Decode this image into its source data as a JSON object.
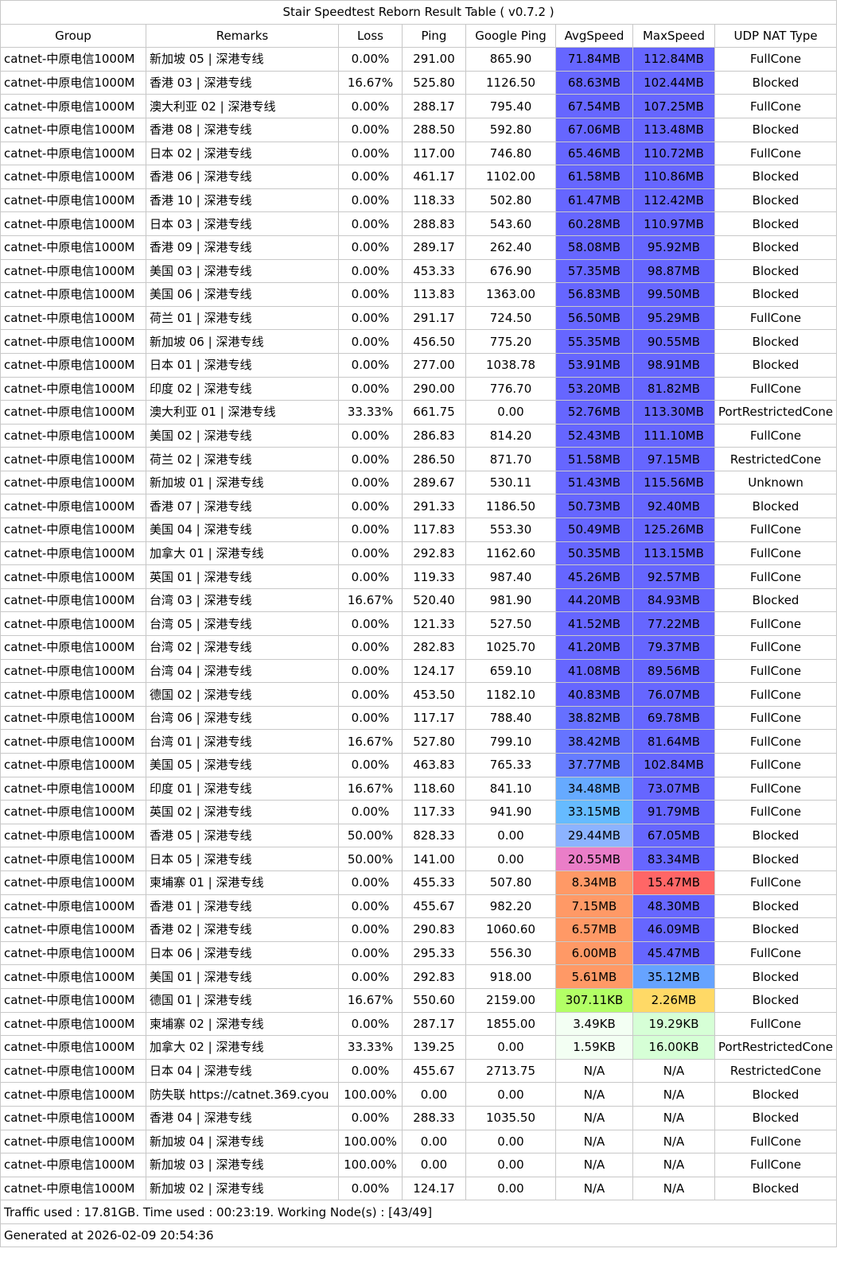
{
  "title": "Stair Speedtest Reborn Result Table ( v0.7.2 )",
  "columns": [
    "Group",
    "Remarks",
    "Loss",
    "Ping",
    "Google Ping",
    "AvgSpeed",
    "MaxSpeed",
    "UDP NAT Type"
  ],
  "colors": {
    "speed_top": "#6666ff",
    "speed_blue2": "#6b74ff",
    "speed_blue3": "#6a86ff",
    "speed_lightblue": "#66b2ff",
    "speed_cyan": "#66c2ff",
    "speed_paleblue": "#8db3ff",
    "speed_pink": "#e97ac6",
    "speed_orange": "#ff9966",
    "speed_red": "#ff6666",
    "speed_lime": "#b3ff66",
    "speed_yellow": "#ffd966",
    "speed_mint": "#f3fff3",
    "speed_palegreen": "#d9ffd9",
    "speed_midblue": "#66a3ff",
    "border": "#c8c8c8"
  },
  "rows": [
    {
      "group": "catnet-中原电信1000M",
      "remarks": "新加坡 05 | 深港专线",
      "loss": "0.00%",
      "ping": "291.00",
      "google_ping": "865.90",
      "avg": "71.84MB",
      "avg_color": "#6666ff",
      "max": "112.84MB",
      "max_color": "#6666ff",
      "nat": "FullCone"
    },
    {
      "group": "catnet-中原电信1000M",
      "remarks": "香港 03 | 深港专线",
      "loss": "16.67%",
      "ping": "525.80",
      "google_ping": "1126.50",
      "avg": "68.63MB",
      "avg_color": "#6666ff",
      "max": "102.44MB",
      "max_color": "#6666ff",
      "nat": "Blocked"
    },
    {
      "group": "catnet-中原电信1000M",
      "remarks": "澳大利亚 02 | 深港专线",
      "loss": "0.00%",
      "ping": "288.17",
      "google_ping": "795.40",
      "avg": "67.54MB",
      "avg_color": "#6666ff",
      "max": "107.25MB",
      "max_color": "#6666ff",
      "nat": "FullCone"
    },
    {
      "group": "catnet-中原电信1000M",
      "remarks": "香港 08 | 深港专线",
      "loss": "0.00%",
      "ping": "288.50",
      "google_ping": "592.80",
      "avg": "67.06MB",
      "avg_color": "#6666ff",
      "max": "113.48MB",
      "max_color": "#6666ff",
      "nat": "Blocked"
    },
    {
      "group": "catnet-中原电信1000M",
      "remarks": "日本 02 | 深港专线",
      "loss": "0.00%",
      "ping": "117.00",
      "google_ping": "746.80",
      "avg": "65.46MB",
      "avg_color": "#6666ff",
      "max": "110.72MB",
      "max_color": "#6666ff",
      "nat": "FullCone"
    },
    {
      "group": "catnet-中原电信1000M",
      "remarks": "香港 06 | 深港专线",
      "loss": "0.00%",
      "ping": "461.17",
      "google_ping": "1102.00",
      "avg": "61.58MB",
      "avg_color": "#6666ff",
      "max": "110.86MB",
      "max_color": "#6666ff",
      "nat": "Blocked"
    },
    {
      "group": "catnet-中原电信1000M",
      "remarks": "香港 10 | 深港专线",
      "loss": "0.00%",
      "ping": "118.33",
      "google_ping": "502.80",
      "avg": "61.47MB",
      "avg_color": "#6666ff",
      "max": "112.42MB",
      "max_color": "#6666ff",
      "nat": "Blocked"
    },
    {
      "group": "catnet-中原电信1000M",
      "remarks": "日本 03 | 深港专线",
      "loss": "0.00%",
      "ping": "288.83",
      "google_ping": "543.60",
      "avg": "60.28MB",
      "avg_color": "#6666ff",
      "max": "110.97MB",
      "max_color": "#6666ff",
      "nat": "Blocked"
    },
    {
      "group": "catnet-中原电信1000M",
      "remarks": "香港 09 | 深港专线",
      "loss": "0.00%",
      "ping": "289.17",
      "google_ping": "262.40",
      "avg": "58.08MB",
      "avg_color": "#6666ff",
      "max": "95.92MB",
      "max_color": "#6666ff",
      "nat": "Blocked"
    },
    {
      "group": "catnet-中原电信1000M",
      "remarks": "美国 03 | 深港专线",
      "loss": "0.00%",
      "ping": "453.33",
      "google_ping": "676.90",
      "avg": "57.35MB",
      "avg_color": "#6666ff",
      "max": "98.87MB",
      "max_color": "#6666ff",
      "nat": "Blocked"
    },
    {
      "group": "catnet-中原电信1000M",
      "remarks": "美国 06 | 深港专线",
      "loss": "0.00%",
      "ping": "113.83",
      "google_ping": "1363.00",
      "avg": "56.83MB",
      "avg_color": "#6666ff",
      "max": "99.50MB",
      "max_color": "#6666ff",
      "nat": "Blocked"
    },
    {
      "group": "catnet-中原电信1000M",
      "remarks": "荷兰 01 | 深港专线",
      "loss": "0.00%",
      "ping": "291.17",
      "google_ping": "724.50",
      "avg": "56.50MB",
      "avg_color": "#6666ff",
      "max": "95.29MB",
      "max_color": "#6666ff",
      "nat": "FullCone"
    },
    {
      "group": "catnet-中原电信1000M",
      "remarks": "新加坡 06 | 深港专线",
      "loss": "0.00%",
      "ping": "456.50",
      "google_ping": "775.20",
      "avg": "55.35MB",
      "avg_color": "#6666ff",
      "max": "90.55MB",
      "max_color": "#6666ff",
      "nat": "Blocked"
    },
    {
      "group": "catnet-中原电信1000M",
      "remarks": "日本 01 | 深港专线",
      "loss": "0.00%",
      "ping": "277.00",
      "google_ping": "1038.78",
      "avg": "53.91MB",
      "avg_color": "#6666ff",
      "max": "98.91MB",
      "max_color": "#6666ff",
      "nat": "Blocked"
    },
    {
      "group": "catnet-中原电信1000M",
      "remarks": "印度 02 | 深港专线",
      "loss": "0.00%",
      "ping": "290.00",
      "google_ping": "776.70",
      "avg": "53.20MB",
      "avg_color": "#6666ff",
      "max": "81.82MB",
      "max_color": "#6666ff",
      "nat": "FullCone"
    },
    {
      "group": "catnet-中原电信1000M",
      "remarks": "澳大利亚 01 | 深港专线",
      "loss": "33.33%",
      "ping": "661.75",
      "google_ping": "0.00",
      "avg": "52.76MB",
      "avg_color": "#6666ff",
      "max": "113.30MB",
      "max_color": "#6666ff",
      "nat": "PortRestrictedCone"
    },
    {
      "group": "catnet-中原电信1000M",
      "remarks": "美国 02 | 深港专线",
      "loss": "0.00%",
      "ping": "286.83",
      "google_ping": "814.20",
      "avg": "52.43MB",
      "avg_color": "#6666ff",
      "max": "111.10MB",
      "max_color": "#6666ff",
      "nat": "FullCone"
    },
    {
      "group": "catnet-中原电信1000M",
      "remarks": "荷兰 02 | 深港专线",
      "loss": "0.00%",
      "ping": "286.50",
      "google_ping": "871.70",
      "avg": "51.58MB",
      "avg_color": "#6666ff",
      "max": "97.15MB",
      "max_color": "#6666ff",
      "nat": "RestrictedCone"
    },
    {
      "group": "catnet-中原电信1000M",
      "remarks": "新加坡 01 | 深港专线",
      "loss": "0.00%",
      "ping": "289.67",
      "google_ping": "530.11",
      "avg": "51.43MB",
      "avg_color": "#6666ff",
      "max": "115.56MB",
      "max_color": "#6666ff",
      "nat": "Unknown"
    },
    {
      "group": "catnet-中原电信1000M",
      "remarks": "香港 07 | 深港专线",
      "loss": "0.00%",
      "ping": "291.33",
      "google_ping": "1186.50",
      "avg": "50.73MB",
      "avg_color": "#6666ff",
      "max": "92.40MB",
      "max_color": "#6666ff",
      "nat": "Blocked"
    },
    {
      "group": "catnet-中原电信1000M",
      "remarks": "美国 04 | 深港专线",
      "loss": "0.00%",
      "ping": "117.83",
      "google_ping": "553.30",
      "avg": "50.49MB",
      "avg_color": "#6666ff",
      "max": "125.26MB",
      "max_color": "#6666ff",
      "nat": "FullCone"
    },
    {
      "group": "catnet-中原电信1000M",
      "remarks": "加拿大 01 | 深港专线",
      "loss": "0.00%",
      "ping": "292.83",
      "google_ping": "1162.60",
      "avg": "50.35MB",
      "avg_color": "#6666ff",
      "max": "113.15MB",
      "max_color": "#6666ff",
      "nat": "FullCone"
    },
    {
      "group": "catnet-中原电信1000M",
      "remarks": "英国 01 | 深港专线",
      "loss": "0.00%",
      "ping": "119.33",
      "google_ping": "987.40",
      "avg": "45.26MB",
      "avg_color": "#6666ff",
      "max": "92.57MB",
      "max_color": "#6666ff",
      "nat": "FullCone"
    },
    {
      "group": "catnet-中原电信1000M",
      "remarks": "台湾 03 | 深港专线",
      "loss": "16.67%",
      "ping": "520.40",
      "google_ping": "981.90",
      "avg": "44.20MB",
      "avg_color": "#6666ff",
      "max": "84.93MB",
      "max_color": "#6666ff",
      "nat": "Blocked"
    },
    {
      "group": "catnet-中原电信1000M",
      "remarks": "台湾 05 | 深港专线",
      "loss": "0.00%",
      "ping": "121.33",
      "google_ping": "527.50",
      "avg": "41.52MB",
      "avg_color": "#6666ff",
      "max": "77.22MB",
      "max_color": "#6666ff",
      "nat": "FullCone"
    },
    {
      "group": "catnet-中原电信1000M",
      "remarks": "台湾 02 | 深港专线",
      "loss": "0.00%",
      "ping": "282.83",
      "google_ping": "1025.70",
      "avg": "41.20MB",
      "avg_color": "#6666ff",
      "max": "79.37MB",
      "max_color": "#6666ff",
      "nat": "FullCone"
    },
    {
      "group": "catnet-中原电信1000M",
      "remarks": "台湾 04 | 深港专线",
      "loss": "0.00%",
      "ping": "124.17",
      "google_ping": "659.10",
      "avg": "41.08MB",
      "avg_color": "#6666ff",
      "max": "89.56MB",
      "max_color": "#6666ff",
      "nat": "FullCone"
    },
    {
      "group": "catnet-中原电信1000M",
      "remarks": "德国 02 | 深港专线",
      "loss": "0.00%",
      "ping": "453.50",
      "google_ping": "1182.10",
      "avg": "40.83MB",
      "avg_color": "#6666ff",
      "max": "76.07MB",
      "max_color": "#6666ff",
      "nat": "FullCone"
    },
    {
      "group": "catnet-中原电信1000M",
      "remarks": "台湾 06 | 深港专线",
      "loss": "0.00%",
      "ping": "117.17",
      "google_ping": "788.40",
      "avg": "38.82MB",
      "avg_color": "#6670ff",
      "max": "69.78MB",
      "max_color": "#6666ff",
      "nat": "FullCone"
    },
    {
      "group": "catnet-中原电信1000M",
      "remarks": "台湾 01 | 深港专线",
      "loss": "16.67%",
      "ping": "527.80",
      "google_ping": "799.10",
      "avg": "38.42MB",
      "avg_color": "#6674ff",
      "max": "81.64MB",
      "max_color": "#6666ff",
      "nat": "FullCone"
    },
    {
      "group": "catnet-中原电信1000M",
      "remarks": "美国 05 | 深港专线",
      "loss": "0.00%",
      "ping": "463.83",
      "google_ping": "765.33",
      "avg": "37.77MB",
      "avg_color": "#667cff",
      "max": "102.84MB",
      "max_color": "#6666ff",
      "nat": "FullCone"
    },
    {
      "group": "catnet-中原电信1000M",
      "remarks": "印度 01 | 深港专线",
      "loss": "16.67%",
      "ping": "118.60",
      "google_ping": "841.10",
      "avg": "34.48MB",
      "avg_color": "#66aaff",
      "max": "73.07MB",
      "max_color": "#6666ff",
      "nat": "FullCone"
    },
    {
      "group": "catnet-中原电信1000M",
      "remarks": "英国 02 | 深港专线",
      "loss": "0.00%",
      "ping": "117.33",
      "google_ping": "941.90",
      "avg": "33.15MB",
      "avg_color": "#66bbff",
      "max": "91.79MB",
      "max_color": "#6666ff",
      "nat": "FullCone"
    },
    {
      "group": "catnet-中原电信1000M",
      "remarks": "香港 05 | 深港专线",
      "loss": "50.00%",
      "ping": "828.33",
      "google_ping": "0.00",
      "avg": "29.44MB",
      "avg_color": "#8cb3ff",
      "max": "67.05MB",
      "max_color": "#6666ff",
      "nat": "Blocked"
    },
    {
      "group": "catnet-中原电信1000M",
      "remarks": "日本 05 | 深港专线",
      "loss": "50.00%",
      "ping": "141.00",
      "google_ping": "0.00",
      "avg": "20.55MB",
      "avg_color": "#ea7ec8",
      "max": "83.34MB",
      "max_color": "#6666ff",
      "nat": "Blocked"
    },
    {
      "group": "catnet-中原电信1000M",
      "remarks": "柬埔寨 01 | 深港专线",
      "loss": "0.00%",
      "ping": "455.33",
      "google_ping": "507.80",
      "avg": "8.34MB",
      "avg_color": "#ff9966",
      "max": "15.47MB",
      "max_color": "#ff6666",
      "nat": "FullCone"
    },
    {
      "group": "catnet-中原电信1000M",
      "remarks": "香港 01 | 深港专线",
      "loss": "0.00%",
      "ping": "455.67",
      "google_ping": "982.20",
      "avg": "7.15MB",
      "avg_color": "#ff9966",
      "max": "48.30MB",
      "max_color": "#6666ff",
      "nat": "Blocked"
    },
    {
      "group": "catnet-中原电信1000M",
      "remarks": "香港 02 | 深港专线",
      "loss": "0.00%",
      "ping": "290.83",
      "google_ping": "1060.60",
      "avg": "6.57MB",
      "avg_color": "#ff9966",
      "max": "46.09MB",
      "max_color": "#6666ff",
      "nat": "Blocked"
    },
    {
      "group": "catnet-中原电信1000M",
      "remarks": "日本 06 | 深港专线",
      "loss": "0.00%",
      "ping": "295.33",
      "google_ping": "556.30",
      "avg": "6.00MB",
      "avg_color": "#ff9966",
      "max": "45.47MB",
      "max_color": "#6666ff",
      "nat": "FullCone"
    },
    {
      "group": "catnet-中原电信1000M",
      "remarks": "美国 01 | 深港专线",
      "loss": "0.00%",
      "ping": "292.83",
      "google_ping": "918.00",
      "avg": "5.61MB",
      "avg_color": "#ff9966",
      "max": "35.12MB",
      "max_color": "#66a3ff",
      "nat": "Blocked"
    },
    {
      "group": "catnet-中原电信1000M",
      "remarks": "德国 01 | 深港专线",
      "loss": "16.67%",
      "ping": "550.60",
      "google_ping": "2159.00",
      "avg": "307.11KB",
      "avg_color": "#b3ff66",
      "max": "2.26MB",
      "max_color": "#ffd966",
      "nat": "Blocked"
    },
    {
      "group": "catnet-中原电信1000M",
      "remarks": "柬埔寨 02 | 深港专线",
      "loss": "0.00%",
      "ping": "287.17",
      "google_ping": "1855.00",
      "avg": "3.49KB",
      "avg_color": "#f3fff3",
      "max": "19.29KB",
      "max_color": "#d6ffd6",
      "nat": "FullCone"
    },
    {
      "group": "catnet-中原电信1000M",
      "remarks": "加拿大 02 | 深港专线",
      "loss": "33.33%",
      "ping": "139.25",
      "google_ping": "0.00",
      "avg": "1.59KB",
      "avg_color": "#f3fff3",
      "max": "16.00KB",
      "max_color": "#d6ffd6",
      "nat": "PortRestrictedCone"
    },
    {
      "group": "catnet-中原电信1000M",
      "remarks": "日本 04 | 深港专线",
      "loss": "0.00%",
      "ping": "455.67",
      "google_ping": "2713.75",
      "avg": "N/A",
      "avg_color": "#ffffff",
      "max": "N/A",
      "max_color": "#ffffff",
      "nat": "RestrictedCone"
    },
    {
      "group": "catnet-中原电信1000M",
      "remarks": "防失联 https://catnet.369.cyou",
      "loss": "100.00%",
      "ping": "0.00",
      "google_ping": "0.00",
      "avg": "N/A",
      "avg_color": "#ffffff",
      "max": "N/A",
      "max_color": "#ffffff",
      "nat": "Blocked"
    },
    {
      "group": "catnet-中原电信1000M",
      "remarks": "香港 04 | 深港专线",
      "loss": "0.00%",
      "ping": "288.33",
      "google_ping": "1035.50",
      "avg": "N/A",
      "avg_color": "#ffffff",
      "max": "N/A",
      "max_color": "#ffffff",
      "nat": "Blocked"
    },
    {
      "group": "catnet-中原电信1000M",
      "remarks": "新加坡 04 | 深港专线",
      "loss": "100.00%",
      "ping": "0.00",
      "google_ping": "0.00",
      "avg": "N/A",
      "avg_color": "#ffffff",
      "max": "N/A",
      "max_color": "#ffffff",
      "nat": "FullCone"
    },
    {
      "group": "catnet-中原电信1000M",
      "remarks": "新加坡 03 | 深港专线",
      "loss": "100.00%",
      "ping": "0.00",
      "google_ping": "0.00",
      "avg": "N/A",
      "avg_color": "#ffffff",
      "max": "N/A",
      "max_color": "#ffffff",
      "nat": "FullCone"
    },
    {
      "group": "catnet-中原电信1000M",
      "remarks": "新加坡 02 | 深港专线",
      "loss": "0.00%",
      "ping": "124.17",
      "google_ping": "0.00",
      "avg": "N/A",
      "avg_color": "#ffffff",
      "max": "N/A",
      "max_color": "#ffffff",
      "nat": "Blocked"
    }
  ],
  "footer": {
    "summary": "Traffic used : 17.81GB. Time used : 00:23:19. Working Node(s) : [43/49]",
    "generated": "Generated at 2026-02-09 20:54:36"
  }
}
